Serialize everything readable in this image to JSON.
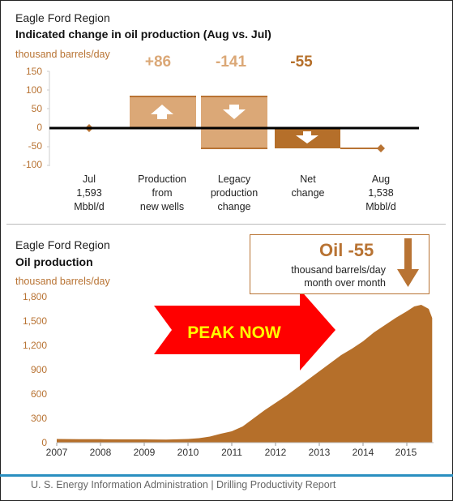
{
  "chart_data": [
    {
      "type": "waterfall",
      "region": "Eagle Ford Region",
      "title": "Indicated change in oil production (Aug vs. Jul)",
      "ylabel": "thousand barrels/day",
      "ylim": [
        -100,
        150
      ],
      "yticks": [
        150,
        100,
        50,
        0,
        -50,
        -100
      ],
      "categories": [
        {
          "lines": [
            "Jul",
            "1,593",
            "Mbbl/d"
          ],
          "value": 1593
        },
        {
          "lines": [
            "Production",
            "from",
            "new wells"
          ],
          "value": 86
        },
        {
          "lines": [
            "Legacy",
            "production",
            "change"
          ],
          "value": -141
        },
        {
          "lines": [
            "Net",
            "change"
          ],
          "value": -55
        },
        {
          "lines": [
            "Aug",
            "1,538",
            "Mbbl/d"
          ],
          "value": 1538
        }
      ],
      "deltas": [
        "+86",
        "-141",
        "-55"
      ],
      "colors": {
        "new_wells": "#dba877",
        "legacy": "#dba877",
        "net": "#b56f2a",
        "line": "#b87333"
      }
    },
    {
      "type": "area",
      "region": "Eagle Ford Region",
      "title": "Oil production",
      "ylabel": "thousand barrels/day",
      "ylim": [
        0,
        1800
      ],
      "yticks": [
        "1,800",
        "1,500",
        "1,200",
        "900",
        "600",
        "300",
        "0"
      ],
      "xticks": [
        "2007",
        "2008",
        "2009",
        "2010",
        "2011",
        "2012",
        "2013",
        "2014",
        "2015"
      ],
      "x": [
        2007.0,
        2007.5,
        2008.0,
        2008.5,
        2009.0,
        2009.5,
        2010.0,
        2010.25,
        2010.5,
        2010.75,
        2011.0,
        2011.25,
        2011.5,
        2011.75,
        2012.0,
        2012.25,
        2012.5,
        2012.75,
        2013.0,
        2013.25,
        2013.5,
        2013.75,
        2014.0,
        2014.25,
        2014.5,
        2014.75,
        2015.0,
        2015.17,
        2015.33,
        2015.5,
        2015.58
      ],
      "values": [
        45,
        42,
        42,
        40,
        40,
        38,
        45,
        55,
        75,
        110,
        140,
        200,
        300,
        400,
        490,
        580,
        680,
        780,
        880,
        980,
        1080,
        1160,
        1250,
        1360,
        1450,
        1540,
        1620,
        1680,
        1700,
        1650,
        1538
      ],
      "color": "#b56f2a",
      "callout": {
        "headline": "Oil -55",
        "line1": "thousand barrels/day",
        "line2": "month over month"
      },
      "arrow_label": "PEAK NOW"
    }
  ],
  "footer": "U. S. Energy Information Administration  |  Drilling Productivity Report"
}
